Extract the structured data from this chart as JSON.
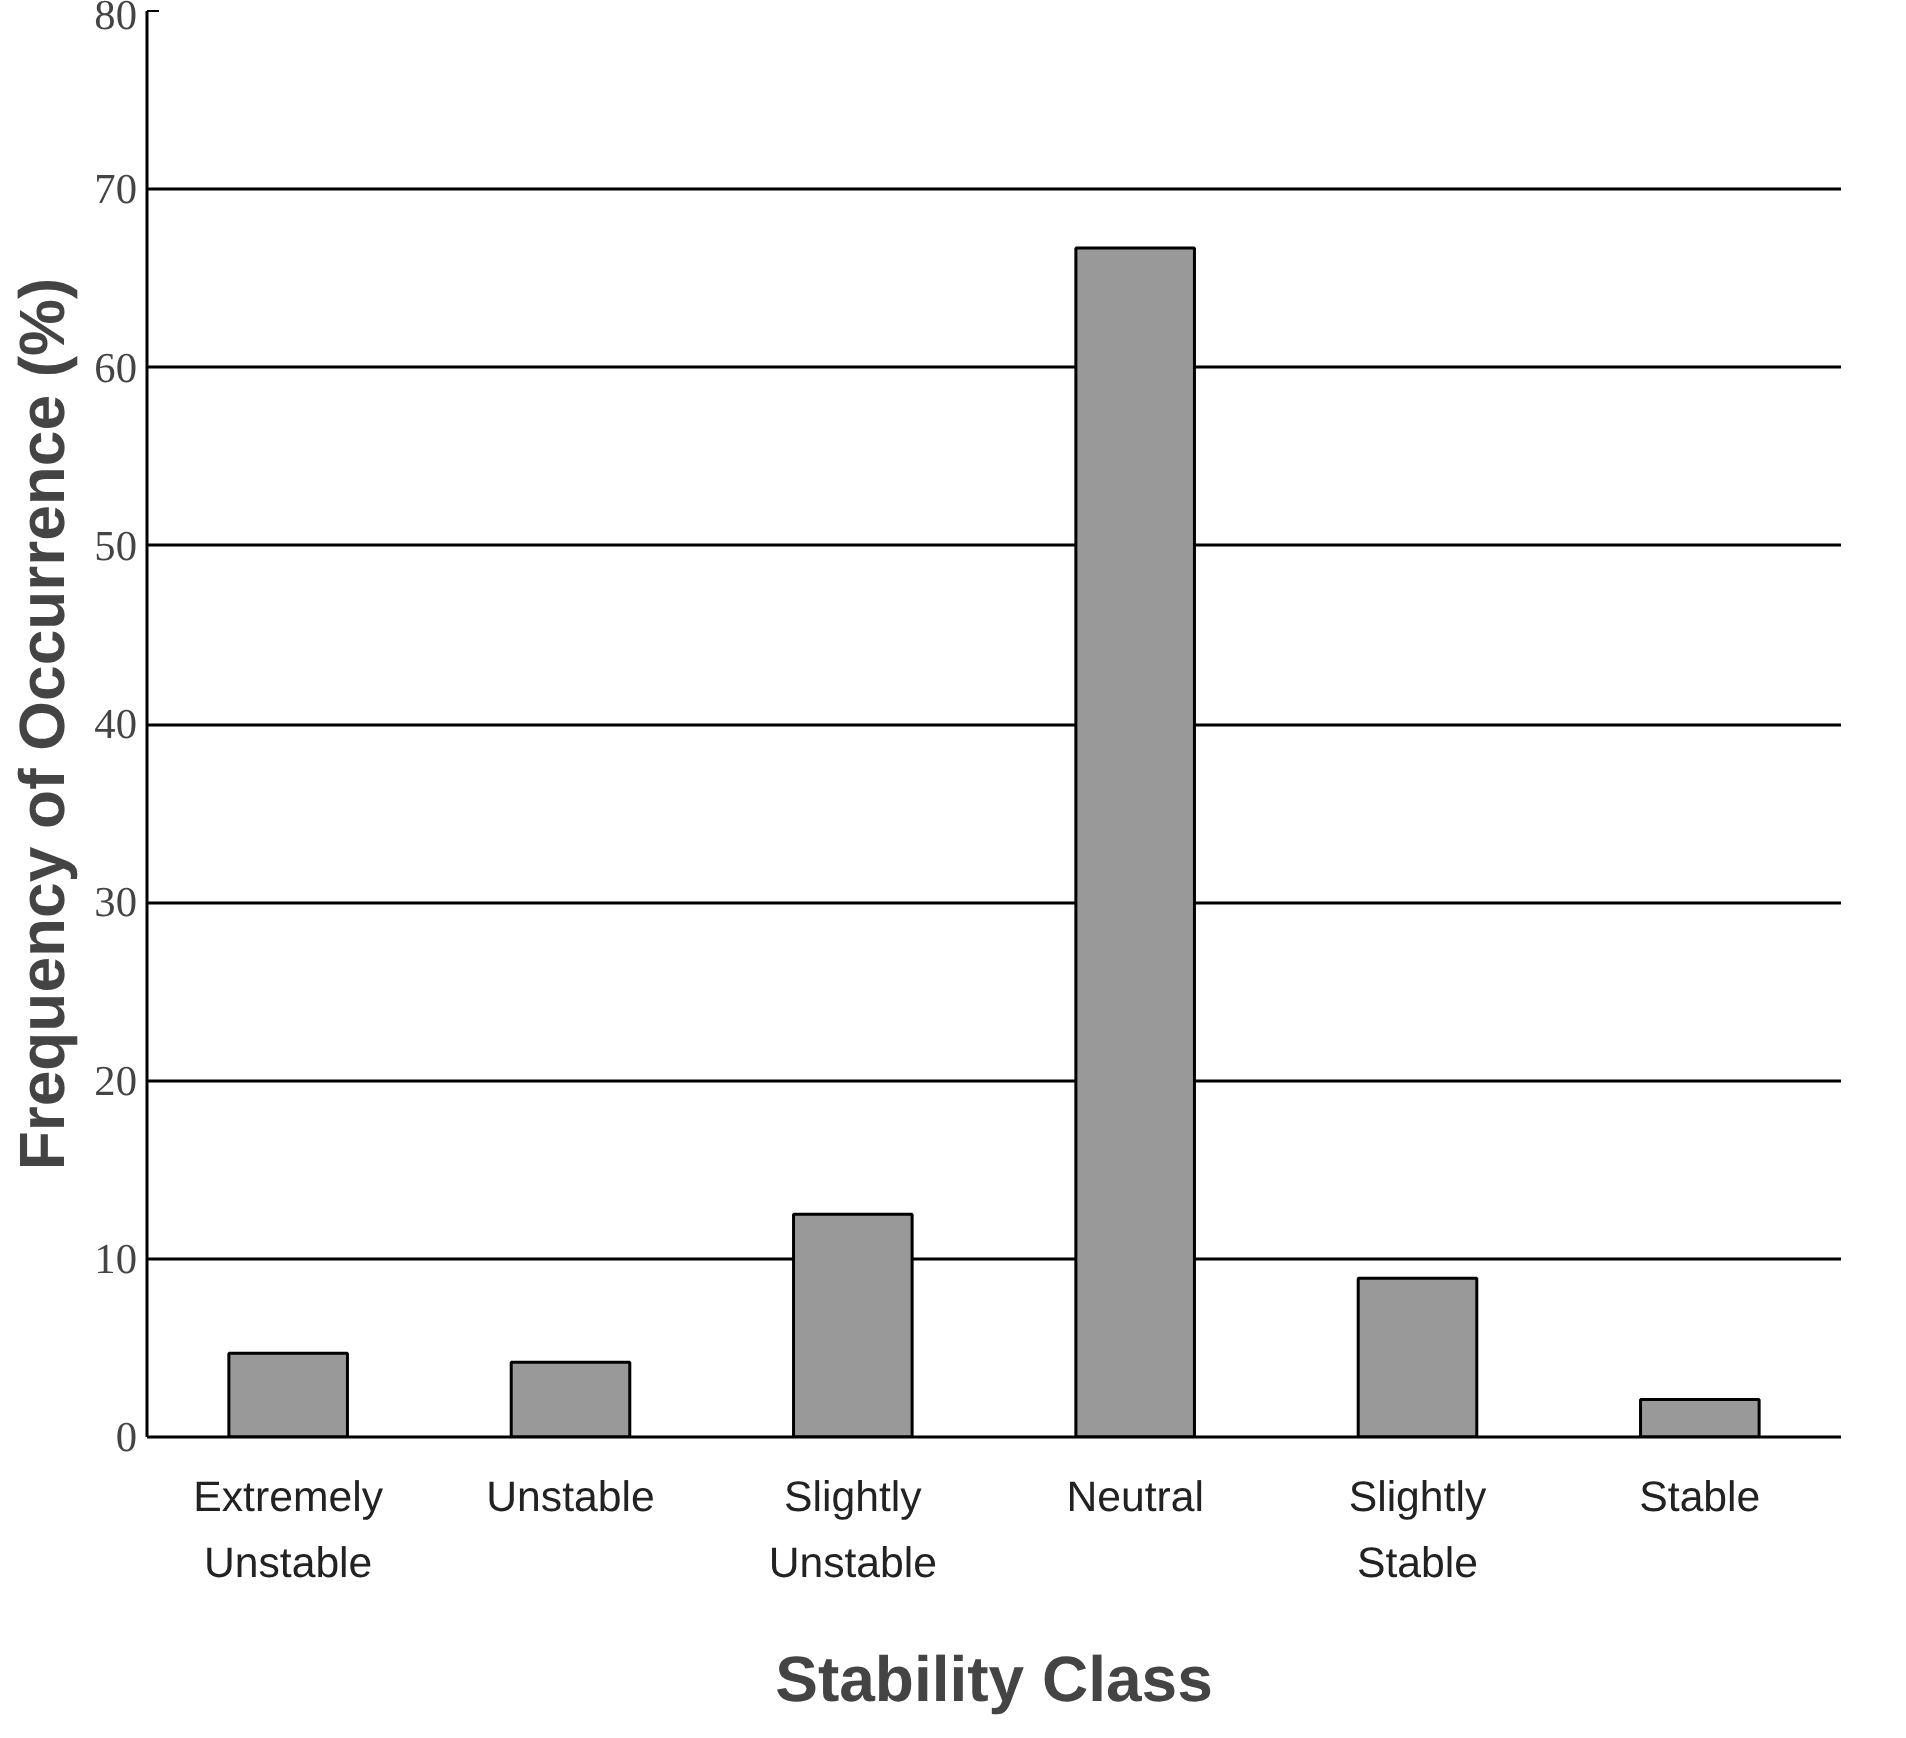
{
  "chart_data": {
    "type": "bar",
    "xlabel": "Stability Class",
    "ylabel": "Frequency of Occurrence (%)",
    "categories": [
      "Extremely\nUnstable",
      "Unstable",
      "Slightly\nUnstable",
      "Neutral",
      "Slightly\nStable",
      "Stable"
    ],
    "values": [
      4.7,
      4.2,
      12.5,
      66.7,
      8.9,
      2.1
    ],
    "color": "#999999",
    "ylim": [
      0,
      80
    ],
    "yticks": [
      0,
      10,
      20,
      30,
      40,
      50,
      60,
      70,
      80
    ],
    "grid": "y"
  }
}
